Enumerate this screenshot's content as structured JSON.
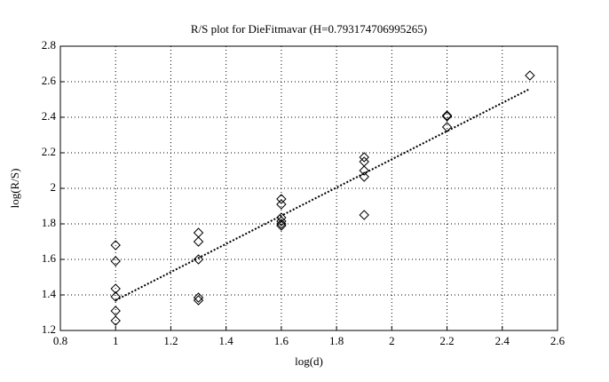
{
  "chart_data": {
    "type": "scatter",
    "title": "R/S plot for DieFitmavar (H=0.793174706995265)",
    "x_label": "log(d)",
    "y_label": "log(R/S)",
    "x": [
      1,
      1,
      1,
      1,
      1,
      1,
      1.3,
      1.3,
      1.3,
      1.3,
      1.3,
      1.6,
      1.6,
      1.6,
      1.6,
      1.6,
      1.6,
      1.9,
      1.9,
      1.9,
      1.9,
      1.9,
      2.2,
      2.2,
      2.2,
      2.5
    ],
    "y": [
      1.68,
      1.59,
      1.435,
      1.39,
      1.31,
      1.255,
      1.75,
      1.7,
      1.6,
      1.385,
      1.37,
      1.94,
      1.91,
      1.835,
      1.815,
      1.8,
      1.79,
      2.175,
      2.15,
      2.1,
      2.065,
      1.85,
      2.41,
      2.405,
      2.345,
      2.635
    ],
    "marker": "diamond",
    "color": "#000000",
    "fit": {
      "x": [
        1,
        2.5
      ],
      "y": [
        1.37,
        2.56
      ]
    },
    "xlim": [
      0.8,
      2.6
    ],
    "xticks": [
      0.8,
      1,
      1.2,
      1.4,
      1.6,
      1.8,
      2,
      2.2,
      2.4,
      2.6
    ],
    "ylim": [
      1.2,
      2.8
    ],
    "yticks": [
      1.2,
      1.4,
      1.6,
      1.8,
      2,
      2.2,
      2.4,
      2.6,
      2.8
    ],
    "grid": true
  }
}
